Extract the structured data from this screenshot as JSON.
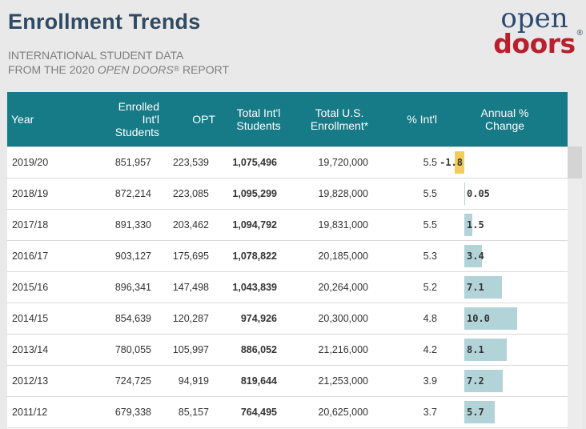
{
  "header": {
    "title": "Enrollment Trends",
    "subtitle_line1": "INTERNATIONAL STUDENT DATA",
    "subtitle_line2_prefix": "FROM THE 2020 ",
    "subtitle_line2_em": "OPEN DOORS",
    "subtitle_line2_reg": "®",
    "subtitle_line2_suffix": " REPORT"
  },
  "logo": {
    "line1": "open",
    "line2": "doors",
    "reg": "®"
  },
  "colors": {
    "header_bg": "#167a87",
    "positive_bar": "#b2d3d8",
    "negative_bar": "#f2cd5c",
    "title": "#2e4a64",
    "logo_blue": "#2c4a72",
    "logo_red": "#b8202e"
  },
  "table": {
    "columns": [
      "Year",
      "Enrolled Int'l Students",
      "OPT",
      "Total Int'l Students",
      "Total U.S. Enrollment*",
      "% Int'l",
      "Annual % Change"
    ],
    "rows": [
      {
        "year": "2019/20",
        "enrolled": "851,957",
        "opt": "223,539",
        "total": "1,075,496",
        "us": "19,720,000",
        "pct": "5.5",
        "change": "-1.8"
      },
      {
        "year": "2018/19",
        "enrolled": "872,214",
        "opt": "223,085",
        "total": "1,095,299",
        "us": "19,828,000",
        "pct": "5.5",
        "change": "0.05"
      },
      {
        "year": "2017/18",
        "enrolled": "891,330",
        "opt": "203,462",
        "total": "1,094,792",
        "us": "19,831,000",
        "pct": "5.5",
        "change": "1.5"
      },
      {
        "year": "2016/17",
        "enrolled": "903,127",
        "opt": "175,695",
        "total": "1,078,822",
        "us": "20,185,000",
        "pct": "5.3",
        "change": "3.4"
      },
      {
        "year": "2015/16",
        "enrolled": "896,341",
        "opt": "147,498",
        "total": "1,043,839",
        "us": "20,264,000",
        "pct": "5.2",
        "change": "7.1"
      },
      {
        "year": "2014/15",
        "enrolled": "854,639",
        "opt": "120,287",
        "total": "974,926",
        "us": "20,300,000",
        "pct": "4.8",
        "change": "10.0"
      },
      {
        "year": "2013/14",
        "enrolled": "780,055",
        "opt": "105,997",
        "total": "886,052",
        "us": "21,216,000",
        "pct": "4.2",
        "change": "8.1"
      },
      {
        "year": "2012/13",
        "enrolled": "724,725",
        "opt": "94,919",
        "total": "819,644",
        "us": "21,253,000",
        "pct": "3.9",
        "change": "7.2"
      },
      {
        "year": "2011/12",
        "enrolled": "679,338",
        "opt": "85,157",
        "total": "764,495",
        "us": "20,625,000",
        "pct": "3.7",
        "change": "5.7"
      }
    ]
  },
  "chart_data": {
    "type": "table",
    "title": "Enrollment Trends",
    "columns": [
      "Year",
      "Enrolled Int'l Students",
      "OPT",
      "Total Int'l Students",
      "Total U.S. Enrollment*",
      "% Int'l",
      "Annual % Change"
    ],
    "categories": [
      "2019/20",
      "2018/19",
      "2017/18",
      "2016/17",
      "2015/16",
      "2014/15",
      "2013/14",
      "2012/13",
      "2011/12"
    ],
    "series": [
      {
        "name": "Annual % Change",
        "values": [
          -1.8,
          0.05,
          1.5,
          3.4,
          7.1,
          10.0,
          8.1,
          7.2,
          5.7
        ]
      }
    ]
  }
}
